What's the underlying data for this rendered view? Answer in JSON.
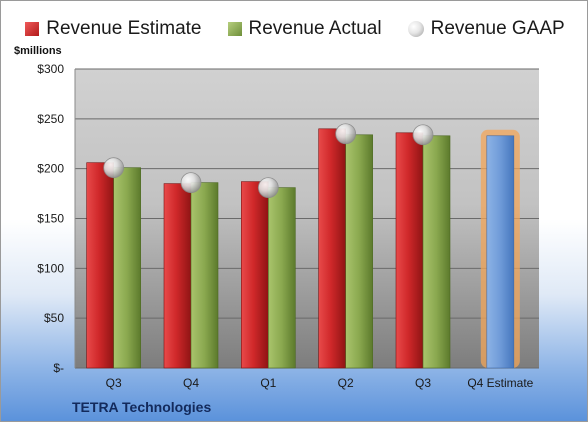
{
  "chart_data": {
    "type": "bar",
    "ylabel": "$millions",
    "ylim": [
      0,
      300
    ],
    "yticks": [
      0,
      50,
      100,
      150,
      200,
      250,
      300
    ],
    "ytick_labels": [
      "$-",
      "$50",
      "$100",
      "$150",
      "$200",
      "$250",
      "$300"
    ],
    "categories": [
      "Q3",
      "Q4",
      "Q1",
      "Q2",
      "Q3",
      "Q4 Estimate"
    ],
    "series": [
      {
        "name": "Revenue Estimate",
        "type": "bar",
        "values": [
          206,
          185,
          187,
          240,
          236,
          null
        ]
      },
      {
        "name": "Revenue Actual",
        "type": "bar",
        "values": [
          201,
          186,
          181,
          234,
          233,
          233
        ]
      },
      {
        "name": "Revenue GAAP",
        "type": "marker",
        "values": [
          201,
          186,
          181,
          235,
          234,
          null
        ]
      }
    ],
    "highlight_category": "Q4 Estimate",
    "legend_position": "top",
    "grid": true,
    "colors": {
      "estimate": "#c8282a",
      "actual": "#8aa84f",
      "estimate_future": "#6f9bd8",
      "highlight_glow": "#f2a55a",
      "gaap_marker": "#bdbdbd",
      "company": "#132a5c"
    }
  },
  "footer": {
    "company": "TETRA Technologies"
  }
}
